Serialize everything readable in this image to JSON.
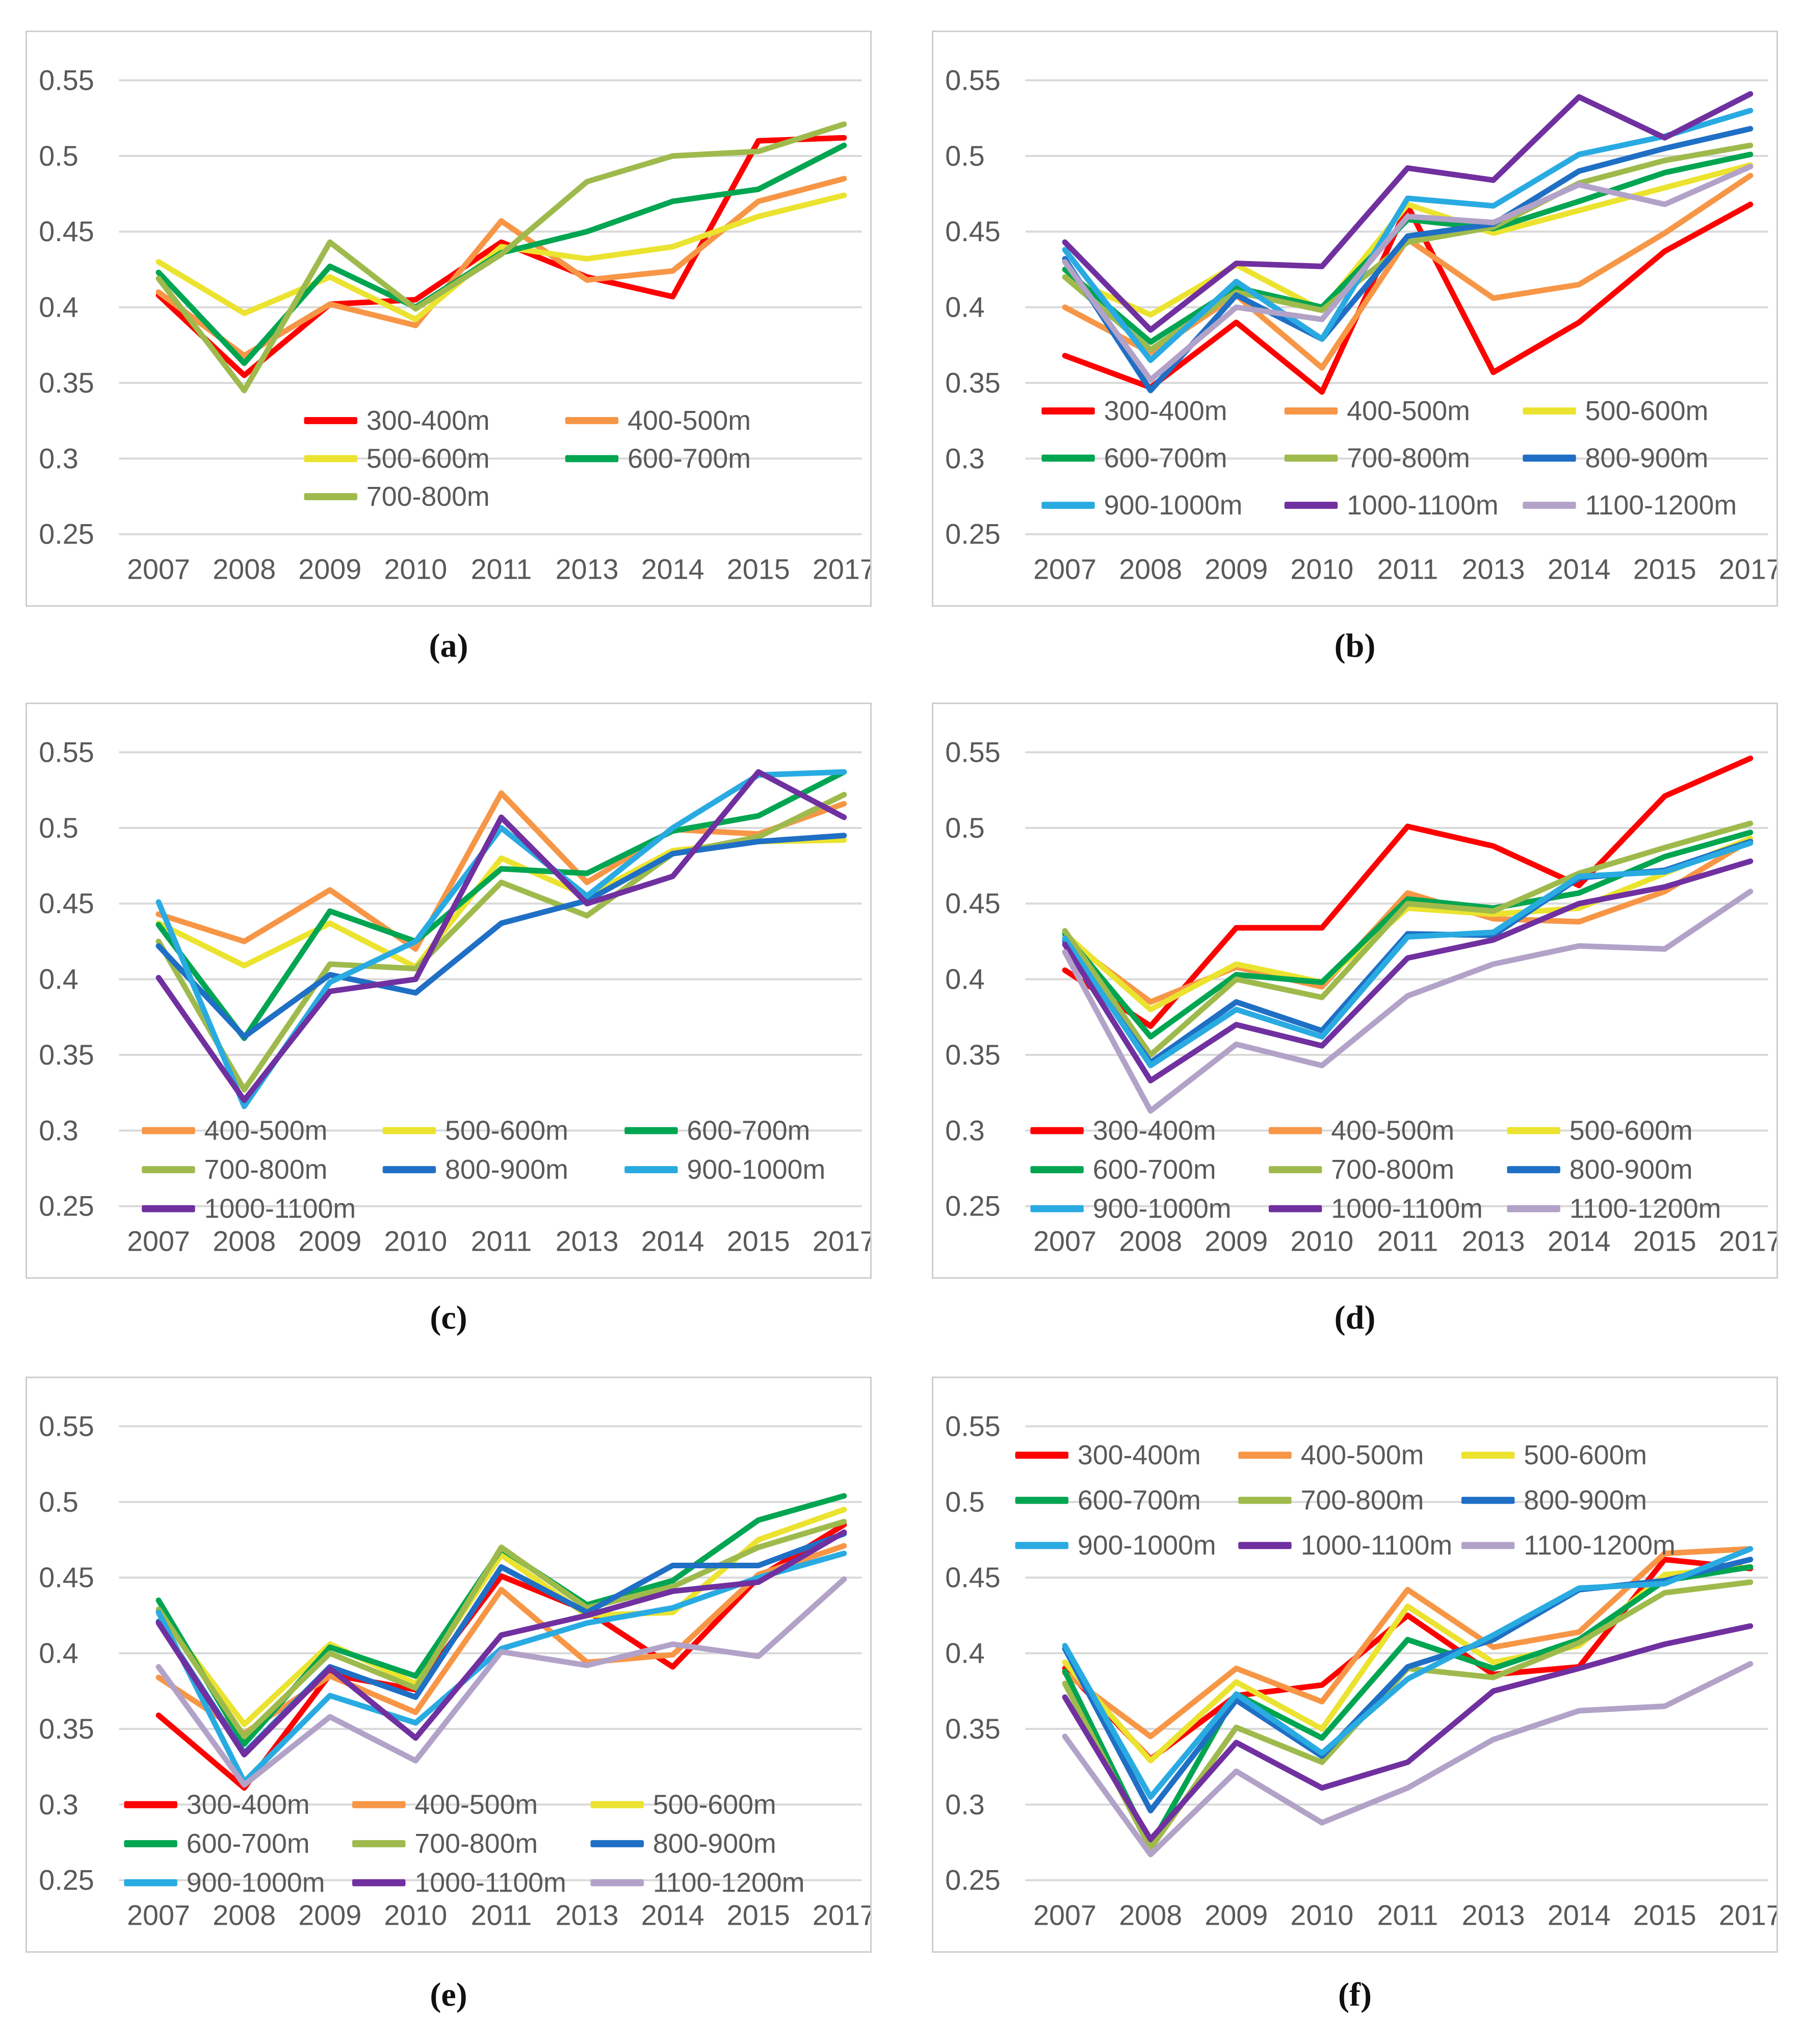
{
  "figure": {
    "background": "#ffffff",
    "grid_color": "#D9D9D9",
    "tick_color": "#595959",
    "panel_border_color": "#CFCDCD"
  },
  "palette": {
    "300-400m": "#FF0000",
    "400-500m": "#F79646",
    "500-600m": "#EBE32F",
    "600-700m": "#00A551",
    "700-800m": "#9FBA4C",
    "800-900m": "#1F6FC5",
    "900-1000m": "#29ABE2",
    "1000-1100m": "#7030A0",
    "1100-1200m": "#B2A2C8"
  },
  "chart_data": [
    {
      "type": "line",
      "panel": "a",
      "caption": "(a)",
      "x": [
        "2007",
        "2008",
        "2009",
        "2010",
        "2011",
        "2013",
        "2014",
        "2015",
        "2017"
      ],
      "ylim": [
        0.25,
        0.55
      ],
      "yticks": [
        "0.55",
        "0.5",
        "0.45",
        "0.4",
        "0.35",
        "0.3",
        "0.25"
      ],
      "grid": true,
      "legend_position": "inside-bottom-center",
      "series": [
        {
          "name": "300-400m",
          "values": [
            0.408,
            0.355,
            0.402,
            0.405,
            0.443,
            0.42,
            0.407,
            0.51,
            0.512
          ]
        },
        {
          "name": "400-500m",
          "values": [
            0.41,
            0.368,
            0.402,
            0.388,
            0.457,
            0.418,
            0.424,
            0.47,
            0.485
          ]
        },
        {
          "name": "500-600m",
          "values": [
            0.43,
            0.396,
            0.42,
            0.392,
            0.44,
            0.432,
            0.44,
            0.46,
            0.474
          ]
        },
        {
          "name": "600-700m",
          "values": [
            0.423,
            0.363,
            0.427,
            0.4,
            0.436,
            0.45,
            0.47,
            0.478,
            0.507
          ]
        },
        {
          "name": "700-800m",
          "values": [
            0.419,
            0.345,
            0.443,
            0.399,
            0.435,
            0.483,
            0.5,
            0.503,
            0.521
          ]
        }
      ]
    },
    {
      "type": "line",
      "panel": "b",
      "caption": "(b)",
      "x": [
        "2007",
        "2008",
        "2009",
        "2010",
        "2011",
        "2013",
        "2014",
        "2015",
        "2017"
      ],
      "ylim": [
        0.25,
        0.55
      ],
      "yticks": [
        "0.55",
        "0.5",
        "0.45",
        "0.4",
        "0.35",
        "0.3",
        "0.25"
      ],
      "grid": true,
      "legend_position": "inside-bottom",
      "series": [
        {
          "name": "300-400m",
          "values": [
            0.368,
            0.347,
            0.39,
            0.344,
            0.467,
            0.357,
            0.39,
            0.437,
            0.468
          ]
        },
        {
          "name": "400-500m",
          "values": [
            0.4,
            0.37,
            0.408,
            0.36,
            0.445,
            0.406,
            0.415,
            0.449,
            0.487
          ]
        },
        {
          "name": "500-600m",
          "values": [
            0.42,
            0.395,
            0.428,
            0.398,
            0.468,
            0.449,
            0.464,
            0.479,
            0.494
          ]
        },
        {
          "name": "600-700m",
          "values": [
            0.425,
            0.377,
            0.413,
            0.4,
            0.458,
            0.452,
            0.47,
            0.489,
            0.501
          ]
        },
        {
          "name": "700-800m",
          "values": [
            0.42,
            0.372,
            0.41,
            0.398,
            0.443,
            0.453,
            0.482,
            0.497,
            0.507
          ]
        },
        {
          "name": "800-900m",
          "values": [
            0.432,
            0.345,
            0.408,
            0.379,
            0.447,
            0.455,
            0.49,
            0.505,
            0.518
          ]
        },
        {
          "name": "900-1000m",
          "values": [
            0.438,
            0.365,
            0.417,
            0.379,
            0.472,
            0.467,
            0.501,
            0.513,
            0.53
          ]
        },
        {
          "name": "1000-1100m",
          "values": [
            0.443,
            0.385,
            0.429,
            0.427,
            0.492,
            0.484,
            0.539,
            0.512,
            0.541
          ]
        },
        {
          "name": "1100-1200m",
          "values": [
            0.43,
            0.352,
            0.4,
            0.392,
            0.46,
            0.456,
            0.481,
            0.468,
            0.493
          ]
        }
      ]
    },
    {
      "type": "line",
      "panel": "c",
      "caption": "(c)",
      "x": [
        "2007",
        "2008",
        "2009",
        "2010",
        "2011",
        "2013",
        "2014",
        "2015",
        "2017"
      ],
      "ylim": [
        0.25,
        0.55
      ],
      "yticks": [
        "0.55",
        "0.5",
        "0.45",
        "0.4",
        "0.35",
        "0.3",
        "0.25"
      ],
      "grid": true,
      "legend_position": "inside-bottom-left",
      "series": [
        {
          "name": "400-500m",
          "values": [
            0.443,
            0.425,
            0.459,
            0.42,
            0.523,
            0.464,
            0.499,
            0.496,
            0.516
          ]
        },
        {
          "name": "500-600m",
          "values": [
            0.437,
            0.409,
            0.437,
            0.408,
            0.48,
            0.455,
            0.485,
            0.491,
            0.492
          ]
        },
        {
          "name": "600-700m",
          "values": [
            0.436,
            0.361,
            0.445,
            0.425,
            0.473,
            0.47,
            0.498,
            0.508,
            0.537
          ]
        },
        {
          "name": "700-800m",
          "values": [
            0.425,
            0.327,
            0.41,
            0.407,
            0.464,
            0.442,
            0.483,
            0.494,
            0.522
          ]
        },
        {
          "name": "800-900m",
          "values": [
            0.422,
            0.362,
            0.403,
            0.391,
            0.437,
            0.452,
            0.483,
            0.491,
            0.495
          ]
        },
        {
          "name": "900-1000m",
          "values": [
            0.451,
            0.316,
            0.398,
            0.425,
            0.5,
            0.455,
            0.5,
            0.535,
            0.537
          ]
        },
        {
          "name": "1000-1100m",
          "values": [
            0.401,
            0.32,
            0.392,
            0.4,
            0.507,
            0.45,
            0.468,
            0.537,
            0.507
          ]
        }
      ]
    },
    {
      "type": "line",
      "panel": "d",
      "caption": "(d)",
      "x": [
        "2007",
        "2008",
        "2009",
        "2010",
        "2011",
        "2013",
        "2014",
        "2015",
        "2017"
      ],
      "ylim": [
        0.25,
        0.55
      ],
      "yticks": [
        "0.55",
        "0.5",
        "0.45",
        "0.4",
        "0.35",
        "0.3",
        "0.25"
      ],
      "grid": true,
      "legend_position": "inside-bottom",
      "series": [
        {
          "name": "300-400m",
          "values": [
            0.406,
            0.369,
            0.434,
            0.434,
            0.501,
            0.488,
            0.462,
            0.521,
            0.546
          ]
        },
        {
          "name": "400-500m",
          "values": [
            0.427,
            0.385,
            0.408,
            0.395,
            0.457,
            0.44,
            0.438,
            0.458,
            0.492
          ]
        },
        {
          "name": "500-600m",
          "values": [
            0.43,
            0.38,
            0.41,
            0.398,
            0.447,
            0.443,
            0.447,
            0.47,
            0.493
          ]
        },
        {
          "name": "600-700m",
          "values": [
            0.43,
            0.362,
            0.403,
            0.398,
            0.453,
            0.447,
            0.457,
            0.481,
            0.497
          ]
        },
        {
          "name": "700-800m",
          "values": [
            0.432,
            0.35,
            0.4,
            0.388,
            0.45,
            0.445,
            0.47,
            0.487,
            0.503
          ]
        },
        {
          "name": "800-900m",
          "values": [
            0.425,
            0.345,
            0.385,
            0.366,
            0.43,
            0.429,
            0.467,
            0.472,
            0.491
          ]
        },
        {
          "name": "900-1000m",
          "values": [
            0.427,
            0.343,
            0.38,
            0.362,
            0.428,
            0.431,
            0.468,
            0.471,
            0.49
          ]
        },
        {
          "name": "1000-1100m",
          "values": [
            0.423,
            0.333,
            0.37,
            0.356,
            0.414,
            0.426,
            0.45,
            0.461,
            0.478
          ]
        },
        {
          "name": "1100-1200m",
          "values": [
            0.418,
            0.313,
            0.357,
            0.343,
            0.389,
            0.41,
            0.422,
            0.42,
            0.458
          ]
        }
      ]
    },
    {
      "type": "line",
      "panel": "e",
      "caption": "(e)",
      "x": [
        "2007",
        "2008",
        "2009",
        "2010",
        "2011",
        "2013",
        "2014",
        "2015",
        "2017"
      ],
      "ylim": [
        0.25,
        0.55
      ],
      "yticks": [
        "0.55",
        "0.5",
        "0.45",
        "0.4",
        "0.35",
        "0.3",
        "0.25"
      ],
      "grid": true,
      "legend_position": "inside-bottom",
      "series": [
        {
          "name": "300-400m",
          "values": [
            0.359,
            0.311,
            0.386,
            0.376,
            0.451,
            0.428,
            0.391,
            0.45,
            0.485
          ]
        },
        {
          "name": "400-500m",
          "values": [
            0.384,
            0.347,
            0.385,
            0.361,
            0.442,
            0.394,
            0.399,
            0.452,
            0.471
          ]
        },
        {
          "name": "500-600m",
          "values": [
            0.428,
            0.353,
            0.406,
            0.38,
            0.465,
            0.425,
            0.427,
            0.475,
            0.495
          ]
        },
        {
          "name": "600-700m",
          "values": [
            0.435,
            0.34,
            0.404,
            0.385,
            0.469,
            0.432,
            0.448,
            0.488,
            0.504
          ]
        },
        {
          "name": "700-800m",
          "values": [
            0.429,
            0.345,
            0.4,
            0.377,
            0.47,
            0.43,
            0.444,
            0.47,
            0.487
          ]
        },
        {
          "name": "800-900m",
          "values": [
            0.421,
            0.334,
            0.391,
            0.371,
            0.457,
            0.427,
            0.458,
            0.458,
            0.479
          ]
        },
        {
          "name": "900-1000m",
          "values": [
            0.427,
            0.315,
            0.372,
            0.354,
            0.403,
            0.42,
            0.43,
            0.45,
            0.466
          ]
        },
        {
          "name": "1000-1100m",
          "values": [
            0.42,
            0.333,
            0.39,
            0.344,
            0.412,
            0.425,
            0.441,
            0.447,
            0.48
          ]
        },
        {
          "name": "1100-1200m",
          "values": [
            0.391,
            0.313,
            0.358,
            0.329,
            0.401,
            0.392,
            0.406,
            0.398,
            0.449
          ]
        }
      ]
    },
    {
      "type": "line",
      "panel": "f",
      "caption": "(f)",
      "x": [
        "2007",
        "2008",
        "2009",
        "2010",
        "2011",
        "2013",
        "2014",
        "2015",
        "2017"
      ],
      "ylim": [
        0.25,
        0.55
      ],
      "yticks": [
        "0.55",
        "0.5",
        "0.45",
        "0.4",
        "0.35",
        "0.3",
        "0.25"
      ],
      "grid": true,
      "legend_position": "inside-top",
      "series": [
        {
          "name": "300-400m",
          "values": [
            0.39,
            0.33,
            0.372,
            0.379,
            0.425,
            0.386,
            0.391,
            0.462,
            0.456
          ]
        },
        {
          "name": "400-500m",
          "values": [
            0.387,
            0.345,
            0.39,
            0.368,
            0.442,
            0.404,
            0.414,
            0.466,
            0.469
          ]
        },
        {
          "name": "500-600m",
          "values": [
            0.394,
            0.329,
            0.381,
            0.35,
            0.431,
            0.394,
            0.405,
            0.452,
            0.457
          ]
        },
        {
          "name": "600-700m",
          "values": [
            0.388,
            0.273,
            0.373,
            0.344,
            0.409,
            0.39,
            0.409,
            0.448,
            0.457
          ]
        },
        {
          "name": "700-800m",
          "values": [
            0.38,
            0.271,
            0.351,
            0.328,
            0.39,
            0.384,
            0.407,
            0.44,
            0.447
          ]
        },
        {
          "name": "800-900m",
          "values": [
            0.403,
            0.296,
            0.369,
            0.332,
            0.391,
            0.409,
            0.442,
            0.448,
            0.462
          ]
        },
        {
          "name": "900-1000m",
          "values": [
            0.405,
            0.305,
            0.373,
            0.334,
            0.383,
            0.412,
            0.443,
            0.446,
            0.469
          ]
        },
        {
          "name": "1000-1100m",
          "values": [
            0.371,
            0.277,
            0.341,
            0.311,
            0.328,
            0.375,
            0.39,
            0.406,
            0.418
          ]
        },
        {
          "name": "1100-1200m",
          "values": [
            0.345,
            0.267,
            0.322,
            0.288,
            0.311,
            0.343,
            0.362,
            0.365,
            0.393
          ]
        }
      ]
    }
  ]
}
